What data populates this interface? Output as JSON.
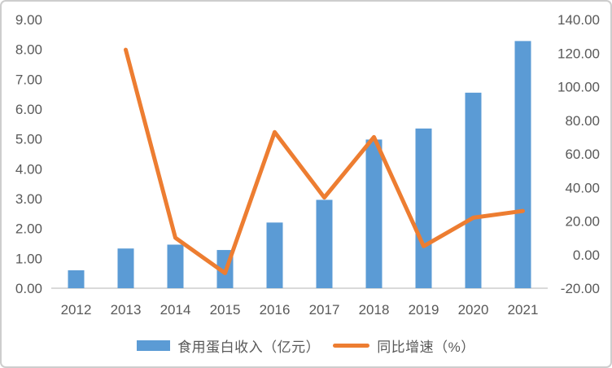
{
  "chart_data": {
    "type": "bar",
    "subtype": "combo-bar-line-dual-axis",
    "title": "",
    "categories": [
      "2012",
      "2013",
      "2014",
      "2015",
      "2016",
      "2017",
      "2018",
      "2019",
      "2020",
      "2021"
    ],
    "series": [
      {
        "name": "食用蛋白收入（亿元）",
        "type": "bar",
        "axis": "left",
        "color": "#5B9BD5",
        "values": [
          0.6,
          1.33,
          1.46,
          1.28,
          2.2,
          2.96,
          4.98,
          5.35,
          6.55,
          8.28
        ]
      },
      {
        "name": "同比增速（%）",
        "type": "line",
        "axis": "right",
        "color": "#ED7D31",
        "values": [
          null,
          122,
          10,
          -11,
          73,
          34,
          70,
          5,
          22,
          26
        ]
      }
    ],
    "left_axis": {
      "min": 0,
      "max": 9,
      "tick_labels": [
        "0.00",
        "1.00",
        "2.00",
        "3.00",
        "4.00",
        "5.00",
        "6.00",
        "7.00",
        "8.00",
        "9.00"
      ]
    },
    "right_axis": {
      "min": -20,
      "max": 140,
      "tick_labels": [
        "-20.00",
        "0.00",
        "20.00",
        "40.00",
        "60.00",
        "80.00",
        "100.00",
        "120.00",
        "140.00"
      ]
    },
    "legend_position": "bottom",
    "grid": "off",
    "axis_line_color": "#d9d9d9",
    "tick_text_color": "#595959"
  }
}
